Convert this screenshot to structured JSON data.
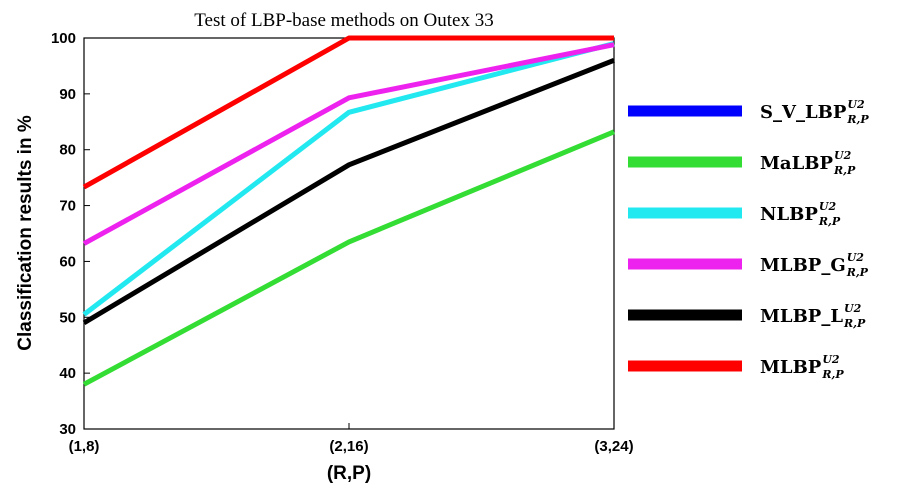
{
  "chart_data": {
    "type": "line",
    "title": "Test of LBP-base methods on Outex 33",
    "xlabel": "(R,P)",
    "ylabel": "Classification results in %",
    "categories": [
      "(1,8)",
      "(2,16)",
      "(3,24)"
    ],
    "ylim": [
      30,
      100
    ],
    "yticks": [
      30,
      40,
      50,
      60,
      70,
      80,
      90,
      100
    ],
    "grid": false,
    "legend_position": "right",
    "series": [
      {
        "name": "S_V_LBP",
        "sup": "U2",
        "sub": "R,P",
        "color": "#0000ff",
        "values": [
          null,
          null,
          null
        ]
      },
      {
        "name": "MaLBP",
        "sup": "U2",
        "sub": "R,P",
        "color": "#33dd33",
        "values": [
          38,
          63.5,
          83.2
        ]
      },
      {
        "name": "NLBP",
        "sup": "U2",
        "sub": "R,P",
        "color": "#22e8f0",
        "values": [
          50.5,
          86.7,
          99
        ]
      },
      {
        "name": "MLBP_G",
        "sup": "U2",
        "sub": "R,P",
        "color": "#ee22ee",
        "values": [
          63.2,
          89.3,
          98.8
        ]
      },
      {
        "name": "MLBP_L",
        "sup": "U2",
        "sub": "R,P",
        "color": "#000000",
        "values": [
          49,
          77.3,
          96
        ]
      },
      {
        "name": "MLBP",
        "sup": "U2",
        "sub": "R,P",
        "color": "#ff0000",
        "values": [
          73.3,
          100,
          100
        ]
      }
    ]
  }
}
